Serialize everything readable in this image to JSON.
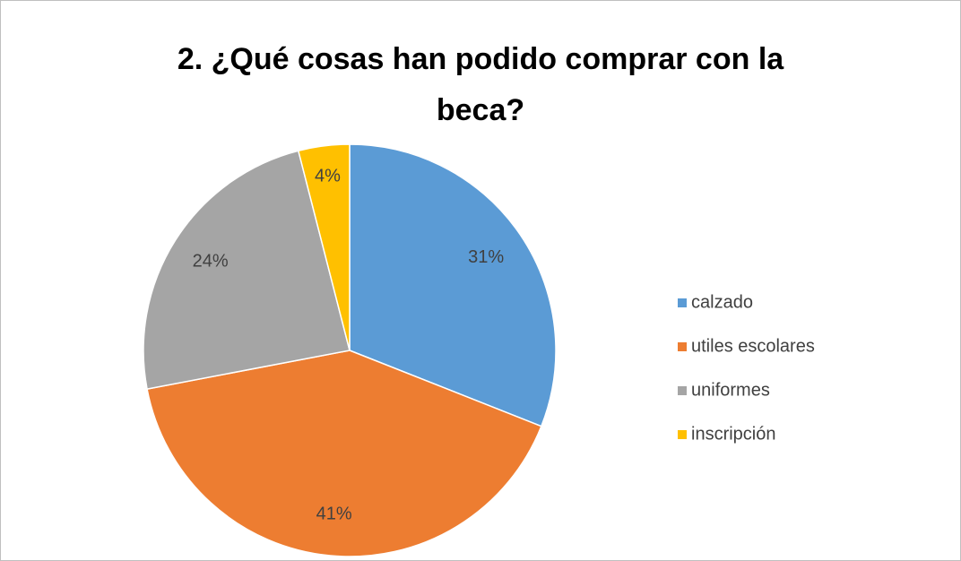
{
  "chart_data": {
    "type": "pie",
    "title": "2. ¿Qué cosas han podido comprar con la beca?",
    "categories": [
      "calzado",
      "utiles escolares",
      "uniformes",
      "inscripción"
    ],
    "values": [
      31,
      41,
      24,
      4
    ],
    "value_labels": [
      "31%",
      "41%",
      "24%",
      "4%"
    ],
    "colors": [
      "#5b9bd5",
      "#ed7d31",
      "#a5a5a5",
      "#ffc000"
    ],
    "legend": "right"
  }
}
